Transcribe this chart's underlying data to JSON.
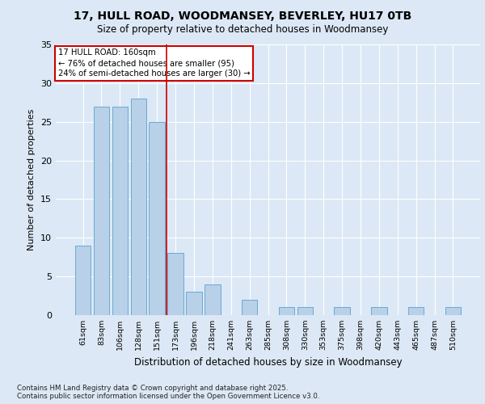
{
  "title1": "17, HULL ROAD, WOODMANSEY, BEVERLEY, HU17 0TB",
  "title2": "Size of property relative to detached houses in Woodmansey",
  "xlabel": "Distribution of detached houses by size in Woodmansey",
  "ylabel": "Number of detached properties",
  "categories": [
    "61sqm",
    "83sqm",
    "106sqm",
    "128sqm",
    "151sqm",
    "173sqm",
    "196sqm",
    "218sqm",
    "241sqm",
    "263sqm",
    "285sqm",
    "308sqm",
    "330sqm",
    "353sqm",
    "375sqm",
    "398sqm",
    "420sqm",
    "443sqm",
    "465sqm",
    "487sqm",
    "510sqm"
  ],
  "values": [
    9,
    27,
    27,
    28,
    25,
    8,
    3,
    4,
    0,
    2,
    0,
    1,
    1,
    0,
    1,
    0,
    1,
    0,
    1,
    0,
    1
  ],
  "bar_color": "#b8d0e8",
  "bar_edge_color": "#6aaad4",
  "background_color": "#dce8f5",
  "grid_color": "#ffffff",
  "vline_x": 4.5,
  "vline_color": "#cc0000",
  "annotation_title": "17 HULL ROAD: 160sqm",
  "annotation_line1": "← 76% of detached houses are smaller (95)",
  "annotation_line2": "24% of semi-detached houses are larger (30) →",
  "annotation_box_color": "#cc0000",
  "fig_bg_color": "#dce8f5",
  "ylim": [
    0,
    35
  ],
  "yticks": [
    0,
    5,
    10,
    15,
    20,
    25,
    30,
    35
  ],
  "footer1": "Contains HM Land Registry data © Crown copyright and database right 2025.",
  "footer2": "Contains public sector information licensed under the Open Government Licence v3.0."
}
